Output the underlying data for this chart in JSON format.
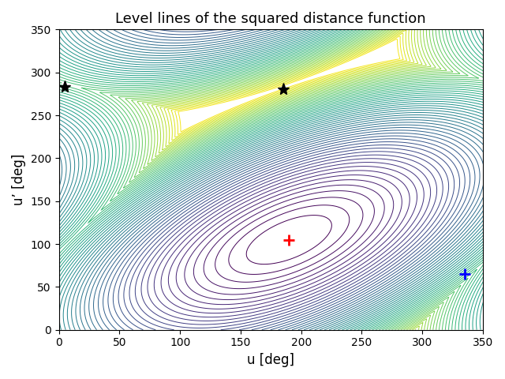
{
  "title": "Level lines of the squared distance function",
  "xlabel": "u [deg]",
  "ylabel": "u’ [deg]",
  "xlim": [
    0,
    350
  ],
  "ylim": [
    0,
    350
  ],
  "xticks": [
    0,
    50,
    100,
    150,
    200,
    250,
    300,
    350
  ],
  "yticks": [
    0,
    50,
    100,
    150,
    200,
    250,
    300,
    350
  ],
  "red_marker_x": 190,
  "red_marker_y": 105,
  "blue_marker_x": 335,
  "blue_marker_y": 65,
  "star1_x": 5,
  "star1_y": 283,
  "star2_x": 185,
  "star2_y": 280,
  "n_contours": 60,
  "cmap": "viridis",
  "rotation_deg": 35,
  "semi_axis1": 85,
  "semi_axis2": 42,
  "figsize": [
    6.4,
    4.8
  ],
  "dpi": 100,
  "title_fontsize": 13,
  "label_fontsize": 12
}
